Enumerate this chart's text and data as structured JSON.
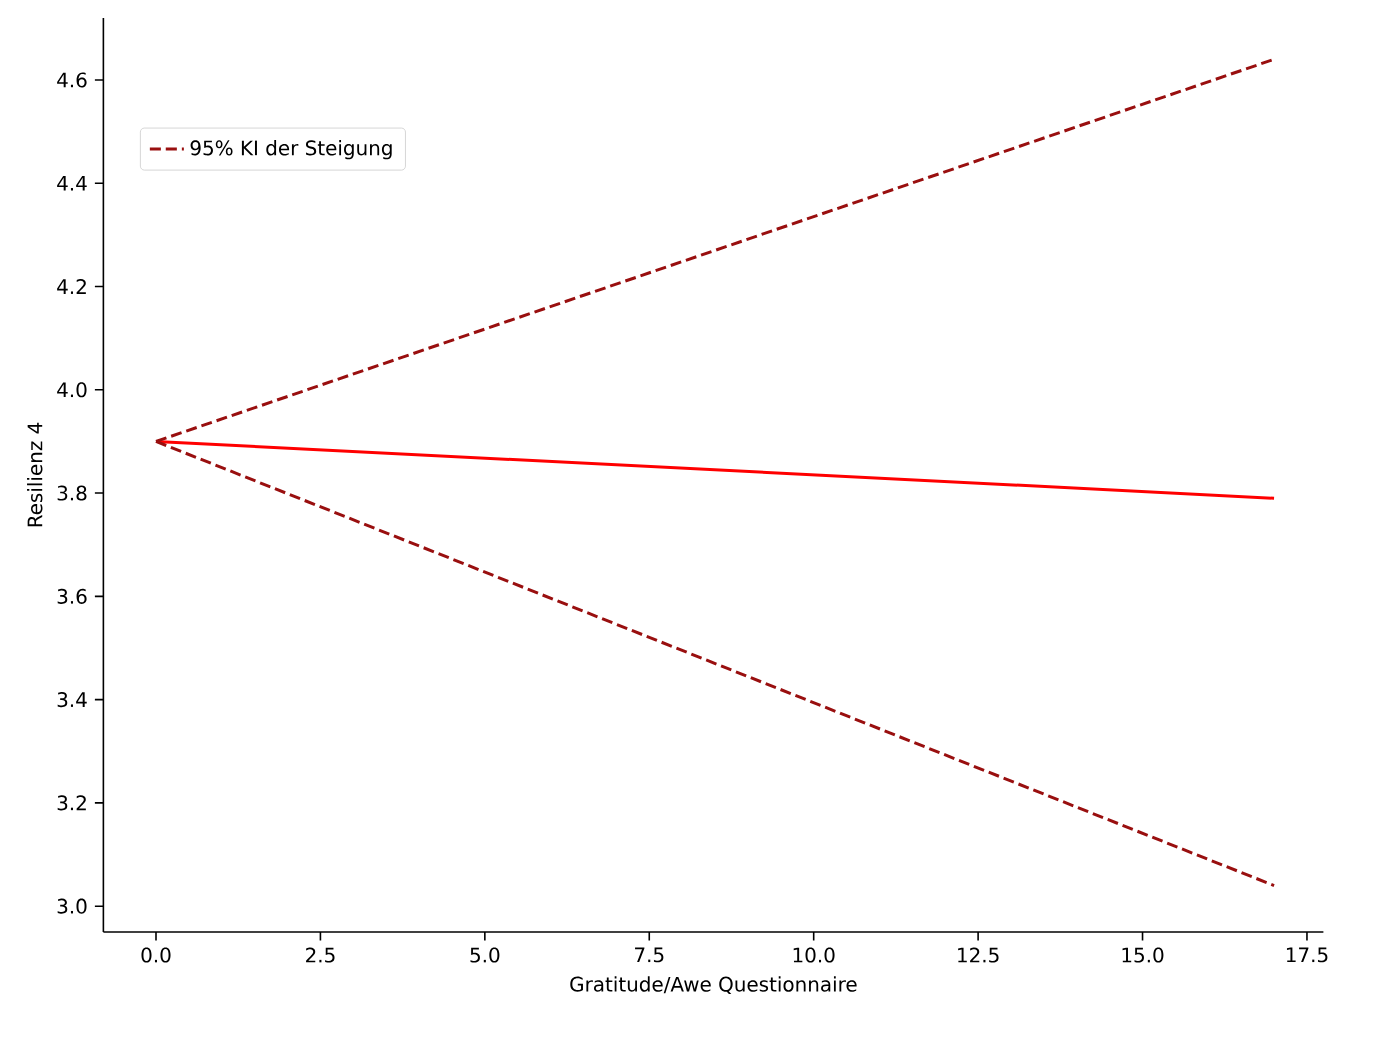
{
  "chart_data": {
    "type": "line",
    "xlabel": "Gratitude/Awe Questionnaire",
    "ylabel": "Resilienz 4",
    "x": [
      0,
      17
    ],
    "series": [
      {
        "color": "#ff0000",
        "line_style": "solid",
        "values": [
          3.9,
          3.79
        ]
      },
      {
        "name": "95% KI der Steigung",
        "color": "#990f0f",
        "line_style": "dashed",
        "values": [
          3.9,
          4.64
        ]
      },
      {
        "color": "#990f0f",
        "line_style": "dashed",
        "values": [
          3.9,
          3.04
        ]
      }
    ],
    "xlim": [
      -0.8,
      17.75
    ],
    "ylim": [
      2.95,
      4.72
    ],
    "xticks": [
      {
        "value": 0,
        "label": "0.0"
      },
      {
        "value": 2.5,
        "label": "2.5"
      },
      {
        "value": 5,
        "label": "5.0"
      },
      {
        "value": 7.5,
        "label": "7.5"
      },
      {
        "value": 10,
        "label": "10.0"
      },
      {
        "value": 12.5,
        "label": "12.5"
      },
      {
        "value": 15,
        "label": "15.0"
      },
      {
        "value": 17.5,
        "label": "17.5"
      }
    ],
    "yticks": [
      {
        "value": 3.0,
        "label": "3.0"
      },
      {
        "value": 3.2,
        "label": "3.2"
      },
      {
        "value": 3.4,
        "label": "3.4"
      },
      {
        "value": 3.6,
        "label": "3.6"
      },
      {
        "value": 3.8,
        "label": "3.8"
      },
      {
        "value": 4.0,
        "label": "4.0"
      },
      {
        "value": 4.2,
        "label": "4.2"
      },
      {
        "value": 4.4,
        "label": "4.4"
      },
      {
        "value": 4.6,
        "label": "4.6"
      }
    ],
    "legend": "top left",
    "grid": false,
    "marker": "none"
  }
}
